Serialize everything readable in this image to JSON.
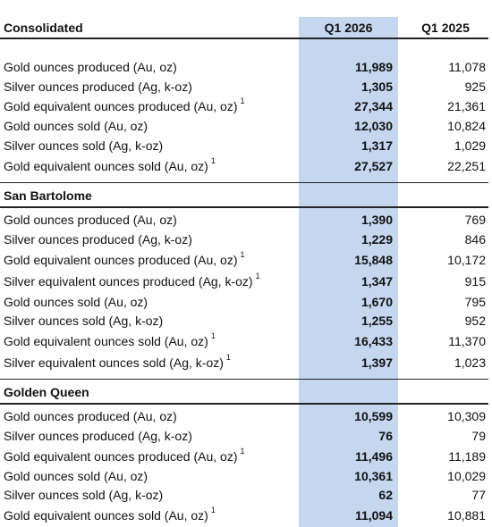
{
  "header": {
    "section": "Consolidated",
    "col1": "Q1 2026",
    "col2": "Q1 2025"
  },
  "consolidated": [
    {
      "label": "Gold ounces produced (Au, oz)",
      "note": "",
      "q1_2026": "11,989",
      "q1_2025": "11,078"
    },
    {
      "label": "Silver ounces produced (Ag, k-oz)",
      "note": "",
      "q1_2026": "1,305",
      "q1_2025": "925"
    },
    {
      "label": "Gold equivalent ounces produced (Au, oz)",
      "note": "1",
      "q1_2026": "27,344",
      "q1_2025": "21,361"
    },
    {
      "label": "Gold ounces sold (Au, oz)",
      "note": "",
      "q1_2026": "12,030",
      "q1_2025": "10,824"
    },
    {
      "label": "Silver ounces sold (Ag, k-oz)",
      "note": "",
      "q1_2026": "1,317",
      "q1_2025": "1,029"
    },
    {
      "label": "Gold equivalent ounces sold (Au, oz)",
      "note": "1",
      "q1_2026": "27,527",
      "q1_2025": "22,251"
    }
  ],
  "san_bartolome": {
    "title": "San Bartolome",
    "rows": [
      {
        "label": "Gold ounces produced (Au, oz)",
        "note": "",
        "q1_2026": "1,390",
        "q1_2025": "769"
      },
      {
        "label": "Silver ounces produced (Ag, k-oz)",
        "note": "",
        "q1_2026": "1,229",
        "q1_2025": "846"
      },
      {
        "label": "Gold equivalent ounces produced (Au, oz)",
        "note": "1",
        "q1_2026": "15,848",
        "q1_2025": "10,172"
      },
      {
        "label": "Silver equivalent ounces produced (Ag, k-oz)",
        "note": "1",
        "q1_2026": "1,347",
        "q1_2025": "915"
      },
      {
        "label": "Gold ounces sold (Au, oz)",
        "note": "",
        "q1_2026": "1,670",
        "q1_2025": "795"
      },
      {
        "label": "Silver ounces sold (Ag, k-oz)",
        "note": "",
        "q1_2026": "1,255",
        "q1_2025": "952"
      },
      {
        "label": "Gold equivalent ounces sold (Au, oz)",
        "note": "1",
        "q1_2026": "16,433",
        "q1_2025": "11,370"
      },
      {
        "label": "Silver equivalent ounces sold (Ag, k-oz)",
        "note": "1",
        "q1_2026": "1,397",
        "q1_2025": "1,023"
      }
    ]
  },
  "golden_queen": {
    "title": "Golden Queen",
    "rows": [
      {
        "label": "Gold ounces produced (Au, oz)",
        "note": "",
        "q1_2026": "10,599",
        "q1_2025": "10,309"
      },
      {
        "label": "Silver ounces produced (Ag, k-oz)",
        "note": "",
        "q1_2026": "76",
        "q1_2025": "79"
      },
      {
        "label": "Gold equivalent ounces produced (Au, oz)",
        "note": "1",
        "q1_2026": "11,496",
        "q1_2025": "11,189"
      },
      {
        "label": "Gold ounces sold (Au, oz)",
        "note": "",
        "q1_2026": "10,361",
        "q1_2025": "10,029"
      },
      {
        "label": "Silver ounces sold (Ag, k-oz)",
        "note": "",
        "q1_2026": "62",
        "q1_2025": "77"
      },
      {
        "label": "Gold equivalent ounces sold (Au, oz)",
        "note": "1",
        "q1_2026": "11,094",
        "q1_2025": "10,881"
      }
    ]
  }
}
